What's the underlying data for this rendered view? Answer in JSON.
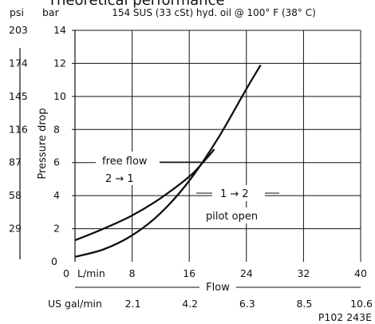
{
  "chart_data": {
    "type": "line",
    "heading": "Theoretical performance",
    "title": "154 SUS (33 cSt) hyd. oil @ 100° F (38° C)",
    "xlabel": "Flow",
    "ylabel": "Pressure drop",
    "x_unit_primary": "L/min",
    "x_unit_secondary": "US gal/min",
    "y_unit_primary": "bar",
    "y_unit_secondary": "psi",
    "xlim": [
      0,
      40
    ],
    "ylim": [
      0,
      14
    ],
    "x_ticks": [
      "8",
      "16",
      "24",
      "32",
      "40"
    ],
    "x_ticks_zero": "0",
    "x_ticks_secondary": [
      "2.1",
      "4.2",
      "6.3",
      "8.5",
      "10.6"
    ],
    "y_ticks": [
      "2",
      "4",
      "6",
      "8",
      "10",
      "12",
      "14"
    ],
    "y_ticks_zero": "0",
    "y_ticks_secondary": [
      "29",
      "58",
      "87",
      "116",
      "145",
      "174",
      "203"
    ],
    "grid": true,
    "series": [
      {
        "name": "free flow 2 → 1",
        "x": [
          0,
          4,
          8,
          12,
          16,
          18,
          19.5
        ],
        "y": [
          1.3,
          2.0,
          2.8,
          3.85,
          5.15,
          6.05,
          6.8
        ]
      },
      {
        "name": "1 → 2 pilot open",
        "x": [
          0,
          4,
          8,
          12,
          16,
          20,
          24,
          26
        ],
        "y": [
          0.3,
          0.75,
          1.6,
          2.95,
          4.9,
          7.45,
          10.45,
          11.9
        ]
      }
    ],
    "annotations": {
      "free_flow": "free flow",
      "free_flow_dir": "2 → 1",
      "pilot_dir": "1 → 2",
      "pilot_open": "pilot open"
    },
    "part_number": "P102 243E"
  }
}
